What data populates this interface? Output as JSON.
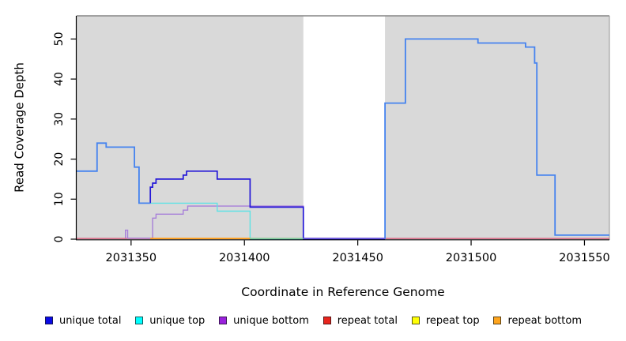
{
  "figure": {
    "xlabel": "Coordinate in Reference Genome",
    "ylabel": "Read Coverage Depth"
  },
  "legend": {
    "items": [
      {
        "label": "unique total",
        "fill": "#0a0ae6",
        "border": "#14145a"
      },
      {
        "label": "unique top",
        "fill": "#00ffff",
        "border": "#145a5a"
      },
      {
        "label": "unique bottom",
        "fill": "#9a21dd",
        "border": "#3d1457"
      },
      {
        "label": "repeat total",
        "fill": "#e8251d",
        "border": "#5a1414"
      },
      {
        "label": "repeat top",
        "fill": "#ffff05",
        "border": "#5a5a14"
      },
      {
        "label": "repeat bottom",
        "fill": "#ffa51d",
        "border": "#5a4114"
      }
    ]
  },
  "chart_data": {
    "type": "line",
    "step_style": "coverage step plot",
    "xlabel": "Coordinate in Reference Genome",
    "ylabel": "Read Coverage Depth",
    "xlim": [
      2031326,
      2031561
    ],
    "ylim": [
      0,
      55.8
    ],
    "xticks": [
      2031350,
      2031400,
      2031450,
      2031500,
      2031550
    ],
    "yticks": [
      0,
      10,
      20,
      30,
      40,
      50
    ],
    "panel_color": "#d9d9d9",
    "gap_region": {
      "x1": 2031426,
      "x2": 2031462,
      "color": "#ffffff"
    },
    "lines": [
      {
        "name": "repeat total (depth 0 baseline)",
        "color": "#dc5172",
        "w": 1.3,
        "dy": -0.9,
        "points": [
          [
            2031326,
            0
          ],
          [
            2031561,
            0
          ]
        ]
      },
      {
        "name": "unique bottom",
        "color": "#a77fd9",
        "w": 1.4,
        "dy": -1.3,
        "points": [
          [
            2031347.5,
            0
          ],
          [
            2031347.5,
            2
          ],
          [
            2031348.5,
            2
          ],
          [
            2031348.5,
            0
          ],
          [
            2031359.5,
            0
          ],
          [
            2031359.5,
            5
          ],
          [
            2031361,
            5
          ],
          [
            2031361,
            6
          ],
          [
            2031373,
            6
          ],
          [
            2031373,
            7
          ],
          [
            2031375,
            7
          ],
          [
            2031375,
            8
          ],
          [
            2031426,
            8
          ],
          [
            2031426,
            0
          ],
          [
            2031462,
            0
          ]
        ]
      },
      {
        "name": "unique top",
        "color": "#5fe2e5",
        "w": 1.4,
        "dy": 0,
        "points": [
          [
            2031358.5,
            9
          ],
          [
            2031388,
            9
          ],
          [
            2031388,
            7
          ],
          [
            2031402.5,
            7
          ],
          [
            2031402.5,
            0
          ],
          [
            2031426,
            0
          ]
        ]
      },
      {
        "name": "unique total (mid section)",
        "color": "#2418d8",
        "w": 1.7,
        "dy": 0,
        "points": [
          [
            2031358.5,
            9
          ],
          [
            2031358.5,
            13
          ],
          [
            2031359.5,
            13
          ],
          [
            2031359.5,
            14
          ],
          [
            2031361,
            14
          ],
          [
            2031361,
            15
          ],
          [
            2031373,
            15
          ],
          [
            2031373,
            16
          ],
          [
            2031374.5,
            16
          ],
          [
            2031374.5,
            17
          ],
          [
            2031388,
            17
          ],
          [
            2031388,
            15
          ],
          [
            2031402.5,
            15
          ],
          [
            2031402.5,
            8
          ],
          [
            2031426,
            8
          ],
          [
            2031426,
            0
          ],
          [
            2031462,
            0
          ]
        ]
      },
      {
        "name": "unique total (left section)",
        "color": "#4583ef",
        "w": 1.8,
        "dy": 0,
        "points": [
          [
            2031326,
            17
          ],
          [
            2031335,
            17
          ],
          [
            2031335,
            24
          ],
          [
            2031339,
            24
          ],
          [
            2031339,
            23
          ],
          [
            2031351.5,
            23
          ],
          [
            2031351.5,
            18
          ],
          [
            2031353.5,
            18
          ],
          [
            2031353.5,
            9
          ],
          [
            2031358.5,
            9
          ]
        ]
      },
      {
        "name": "unique total (right section)",
        "color": "#4583ef",
        "w": 1.8,
        "dy": 0,
        "points": [
          [
            2031462,
            0
          ],
          [
            2031462,
            34
          ],
          [
            2031471,
            34
          ],
          [
            2031471,
            50
          ],
          [
            2031503,
            50
          ],
          [
            2031503,
            49
          ],
          [
            2031524,
            49
          ],
          [
            2031524,
            48
          ],
          [
            2031528,
            48
          ],
          [
            2031528,
            44
          ],
          [
            2031529,
            44
          ],
          [
            2031529,
            16
          ],
          [
            2031537,
            16
          ],
          [
            2031537,
            1
          ],
          [
            2031561,
            1
          ]
        ]
      },
      {
        "name": "repeat bottom (visible at 0)",
        "color": "#ff9d17",
        "w": 1.7,
        "dy": -0.9,
        "points": [
          [
            2031358.5,
            0
          ],
          [
            2031402.5,
            0
          ]
        ]
      },
      {
        "name": "unique top + repeat top overlap at 0",
        "color": "#84c589",
        "w": 1.4,
        "dy": -0.9,
        "points": [
          [
            2031402.5,
            0
          ],
          [
            2031426,
            0
          ]
        ]
      },
      {
        "name": "unique total + unique bottom overlap at 0",
        "color": "#6b5ce0",
        "w": 1.5,
        "dy": -0.9,
        "points": [
          [
            2031426,
            0
          ],
          [
            2031462,
            0
          ]
        ]
      }
    ]
  }
}
